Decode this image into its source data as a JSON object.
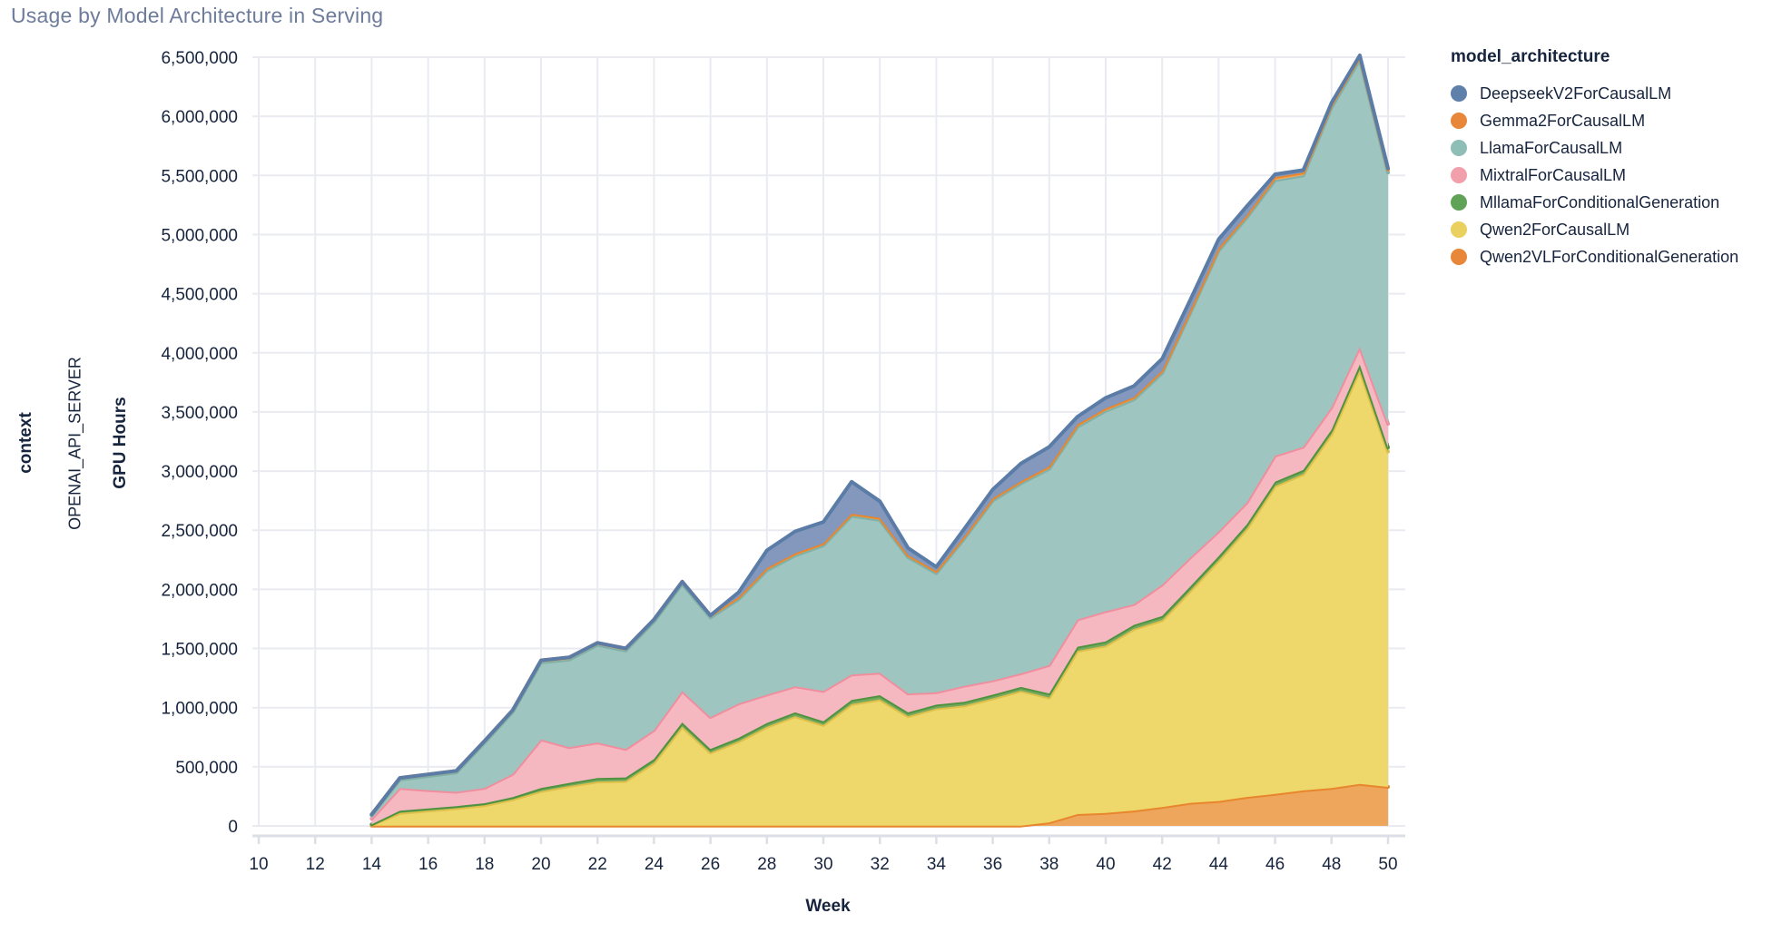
{
  "title": "Usage by Model Architecture in Serving",
  "facet": {
    "row_title": "context",
    "row_value": "OPENAI_API_SERVER"
  },
  "x_axis": {
    "title": "Week"
  },
  "y_axis": {
    "title": "GPU Hours"
  },
  "legend": {
    "title": "model_architecture",
    "items": [
      {
        "label": "DeepseekV2ForCausalLM",
        "color": "#5e80ab"
      },
      {
        "label": "Gemma2ForCausalLM",
        "color": "#e8873a"
      },
      {
        "label": "LlamaForCausalLM",
        "color": "#8fbeb7"
      },
      {
        "label": "MixtralForCausalLM",
        "color": "#f29fac"
      },
      {
        "label": "MllamaForConditionalGeneration",
        "color": "#61a356"
      },
      {
        "label": "Qwen2ForCausalLM",
        "color": "#e9d05f"
      },
      {
        "label": "Qwen2VLForConditionalGeneration",
        "color": "#e8873a"
      }
    ]
  },
  "chart_data": {
    "type": "area",
    "stacked": true,
    "title": "Usage by Model Architecture in Serving",
    "xlabel": "Week",
    "ylabel": "GPU Hours",
    "xlim": [
      10,
      50
    ],
    "ylim": [
      0,
      6500000
    ],
    "grid": true,
    "legend_position": "right",
    "x_ticks": [
      10,
      12,
      14,
      16,
      18,
      20,
      22,
      24,
      26,
      28,
      30,
      32,
      34,
      36,
      38,
      40,
      42,
      44,
      46,
      48,
      50
    ],
    "y_tick_labels": [
      "0",
      "500,000",
      "1,000,000",
      "1,500,000",
      "2,000,000",
      "2,500,000",
      "3,000,000",
      "3,500,000",
      "4,000,000",
      "4,500,000",
      "5,000,000",
      "5,500,000",
      "6,000,000",
      "6,500,000"
    ],
    "y_tick_step": 500000,
    "weeks": [
      14,
      15,
      16,
      17,
      18,
      19,
      20,
      21,
      22,
      23,
      24,
      25,
      26,
      27,
      28,
      29,
      30,
      31,
      32,
      33,
      34,
      35,
      36,
      37,
      38,
      39,
      40,
      41,
      42,
      43,
      44,
      45,
      46,
      47,
      48,
      49,
      50
    ],
    "stack_order_bottom_to_top": [
      "Qwen2VLForConditionalGeneration",
      "Qwen2ForCausalLM",
      "MllamaForConditionalGeneration",
      "MixtralForCausalLM",
      "LlamaForCausalLM",
      "Gemma2ForCausalLM",
      "DeepseekV2ForCausalLM"
    ],
    "series": [
      {
        "name": "DeepseekV2ForCausalLM",
        "fill": "#8398bc",
        "stroke": "#5a7ca6",
        "values": [
          0,
          0,
          0,
          0,
          0,
          0,
          0,
          0,
          0,
          0,
          0,
          0,
          0,
          40000,
          150000,
          185000,
          180000,
          270000,
          140000,
          60000,
          35000,
          65000,
          75000,
          150000,
          165000,
          65000,
          90000,
          95000,
          100000,
          90000,
          75000,
          75000,
          25000,
          20000,
          15000,
          10000,
          10000
        ]
      },
      {
        "name": "Gemma2ForCausalLM",
        "fill": "#f0a95e",
        "stroke": "#e8872e",
        "values": [
          8000,
          15000,
          15000,
          15000,
          15000,
          15000,
          18000,
          18000,
          18000,
          18000,
          18000,
          18000,
          18000,
          18000,
          18000,
          18000,
          18000,
          18000,
          18000,
          18000,
          18000,
          18000,
          18000,
          18000,
          20000,
          20000,
          20000,
          20000,
          20000,
          20000,
          20000,
          20000,
          25000,
          25000,
          25000,
          25000,
          25000
        ]
      },
      {
        "name": "LlamaForCausalLM",
        "fill": "#9ec5bf",
        "stroke": "#7fb1a9",
        "values": [
          28000,
          70000,
          119000,
          163000,
          382000,
          525000,
          651000,
          742000,
          825000,
          832000,
          917000,
          907000,
          842000,
          882000,
          1052000,
          1107000,
          1232000,
          1342000,
          1292000,
          1152000,
          1007000,
          1247000,
          1522000,
          1607000,
          1660000,
          1630000,
          1695000,
          1730000,
          1790000,
          2070000,
          2375000,
          2410000,
          2330000,
          2295000,
          2535000,
          2430000,
          2125000
        ]
      },
      {
        "name": "MixtralForCausalLM",
        "fill": "#f5b8c1",
        "stroke": "#f08e9e",
        "values": [
          48000,
          192000,
          154000,
          121000,
          129000,
          197000,
          411000,
          301000,
          300000,
          240000,
          245000,
          265000,
          270000,
          290000,
          240000,
          220000,
          255000,
          215000,
          190000,
          160000,
          105000,
          135000,
          120000,
          115000,
          240000,
          230000,
          255000,
          175000,
          265000,
          245000,
          210000,
          185000,
          220000,
          195000,
          190000,
          150000,
          200000
        ]
      },
      {
        "name": "MllamaForConditionalGeneration",
        "fill": "#74a95e",
        "stroke": "#4f9340",
        "values": [
          3000,
          20000,
          18000,
          17000,
          17000,
          18000,
          25000,
          26000,
          30000,
          30000,
          30000,
          35000,
          30000,
          30000,
          32000,
          32000,
          32000,
          35000,
          35000,
          32000,
          32000,
          32000,
          32000,
          32000,
          35000,
          35000,
          35000,
          35000,
          35000,
          35000,
          35000,
          35000,
          35000,
          35000,
          35000,
          40000,
          35000
        ]
      },
      {
        "name": "Qwen2ForCausalLM",
        "fill": "#eed76b",
        "stroke": "#dec04a",
        "values": [
          8000,
          107000,
          128000,
          148000,
          173000,
          223000,
          293000,
          336000,
          373000,
          378000,
          533000,
          838000,
          618000,
          713000,
          836000,
          926000,
          851000,
          1028000,
          1068000,
          926000,
          991000,
          1016000,
          1076000,
          1141000,
          1055000,
          1380000,
          1415000,
          1535000,
          1580000,
          1795000,
          2035000,
          2270000,
          2605000,
          2675000,
          2995000,
          3505000,
          2835000
        ]
      },
      {
        "name": "Qwen2VLForConditionalGeneration",
        "fill": "#eda65c",
        "stroke": "#e8862d",
        "values": [
          2000,
          2000,
          2000,
          2000,
          2000,
          2000,
          2000,
          2000,
          2000,
          2000,
          2000,
          2000,
          2000,
          2000,
          2000,
          2000,
          2000,
          2000,
          2000,
          2000,
          2000,
          2000,
          2000,
          2000,
          30000,
          100000,
          110000,
          130000,
          160000,
          195000,
          210000,
          245000,
          270000,
          300000,
          320000,
          355000,
          330000
        ]
      }
    ],
    "colors": {
      "grid": "#e9ebf1",
      "axis_domain": "#dcdfe5",
      "tick_text": "#17243e",
      "title_text": "#6e7c9b"
    }
  }
}
